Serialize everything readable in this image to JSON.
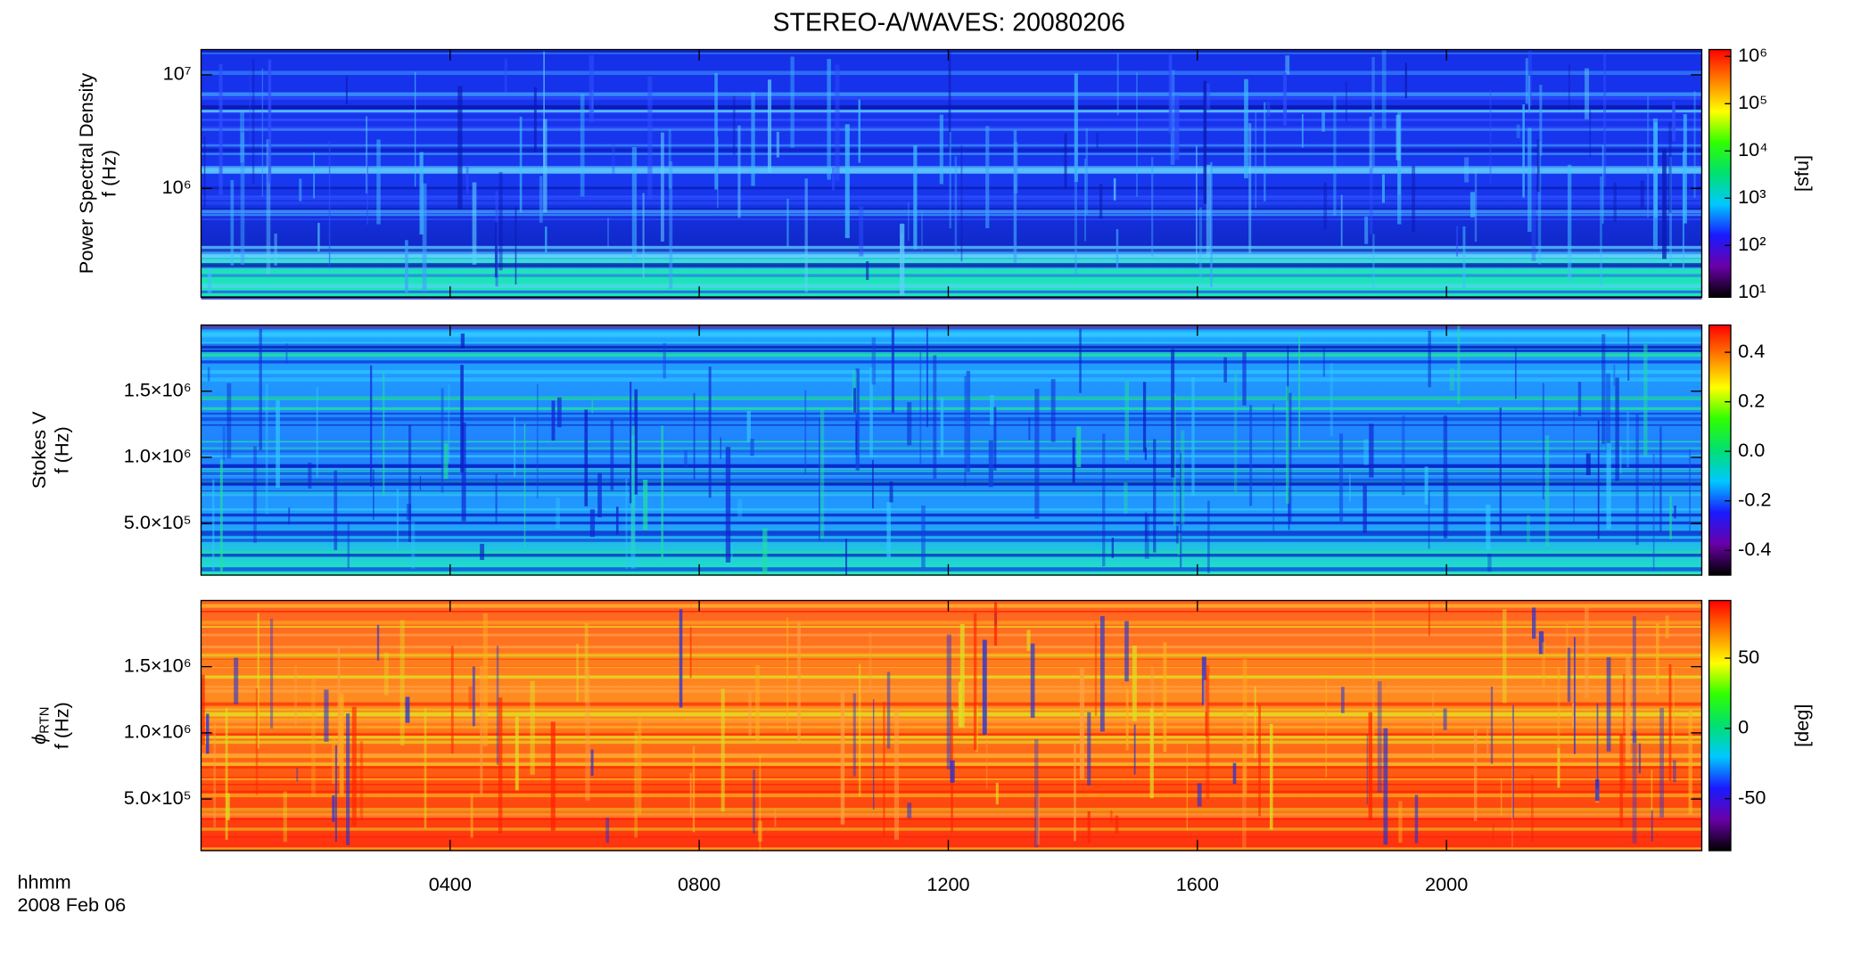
{
  "chart_data": [
    {
      "type": "spectrogram",
      "title": "STEREO-A/WAVES: 20080206",
      "ylabel": [
        "Power Spectral Density",
        "f (Hz)"
      ],
      "ylog": true,
      "ylim": [
        110000,
        16700000
      ],
      "yticks": [
        {
          "value": 1000000,
          "label": "10⁶"
        },
        {
          "value": 10000000,
          "label": "10⁷"
        }
      ],
      "colorbar": {
        "log": true,
        "lim": [
          8,
          1400000
        ],
        "label": "[sfu]",
        "ticks": [
          {
            "value": 10,
            "label": "10¹"
          },
          {
            "value": 100,
            "label": "10²"
          },
          {
            "value": 1000,
            "label": "10³"
          },
          {
            "value": 10000,
            "label": "10⁴"
          },
          {
            "value": 100000,
            "label": "10⁵"
          },
          {
            "value": 1000000,
            "label": "10⁶"
          }
        ]
      },
      "colormap": [
        "#000000",
        "#6a00a8",
        "#1a1aff",
        "#00c8ff",
        "#00e070",
        "#30ff00",
        "#ffff00",
        "#ff7f00",
        "#ff0000"
      ]
    },
    {
      "type": "spectrogram",
      "ylabel": [
        "Stokes V",
        "f (Hz)"
      ],
      "ylog": false,
      "ylim": [
        110000,
        2000000
      ],
      "yticks": [
        {
          "value": 500000,
          "label": "5.0×10⁵"
        },
        {
          "value": 1000000,
          "label": "1.0×10⁶"
        },
        {
          "value": 1500000,
          "label": "1.5×10⁶"
        }
      ],
      "colorbar": {
        "log": false,
        "lim": [
          -0.5,
          0.51
        ],
        "ticks": [
          {
            "value": -0.4,
            "label": "-0.4"
          },
          {
            "value": -0.2,
            "label": "-0.2"
          },
          {
            "value": 0,
            "label": "0.0"
          },
          {
            "value": 0.2,
            "label": "0.2"
          },
          {
            "value": 0.4,
            "label": "0.4"
          }
        ]
      },
      "colormap": [
        "#000000",
        "#6a00a8",
        "#1a1aff",
        "#00c8ff",
        "#00e070",
        "#30ff00",
        "#ffff00",
        "#ff7f00",
        "#ff0000"
      ]
    },
    {
      "type": "spectrogram",
      "ylabel_symbol": "ϕ",
      "ylabel_sub": "RTN",
      "ylabel": [
        "f (Hz)"
      ],
      "ylog": false,
      "ylim": [
        110000,
        2000000
      ],
      "yticks": [
        {
          "value": 500000,
          "label": "5.0×10⁵"
        },
        {
          "value": 1000000,
          "label": "1.0×10⁶"
        },
        {
          "value": 1500000,
          "label": "1.5×10⁶"
        }
      ],
      "colorbar": {
        "log": false,
        "lim": [
          -87,
          91
        ],
        "label": "[deg]",
        "ticks": [
          -50,
          0,
          50
        ]
      },
      "colormap": [
        "#000000",
        "#6a00a8",
        "#1a1aff",
        "#00c8ff",
        "#00e070",
        "#30ff00",
        "#ffff00",
        "#ff7f00",
        "#ff0000"
      ],
      "xlim": [
        0,
        24.1
      ],
      "xticks": [
        {
          "value": 4,
          "label": "0400"
        },
        {
          "value": 8,
          "label": "0800"
        },
        {
          "value": 12,
          "label": "1200"
        },
        {
          "value": 16,
          "label": "1600"
        },
        {
          "value": 20,
          "label": "2000"
        }
      ],
      "xlabel": "hhmm",
      "xsublabel": "2008 Feb 06"
    }
  ]
}
